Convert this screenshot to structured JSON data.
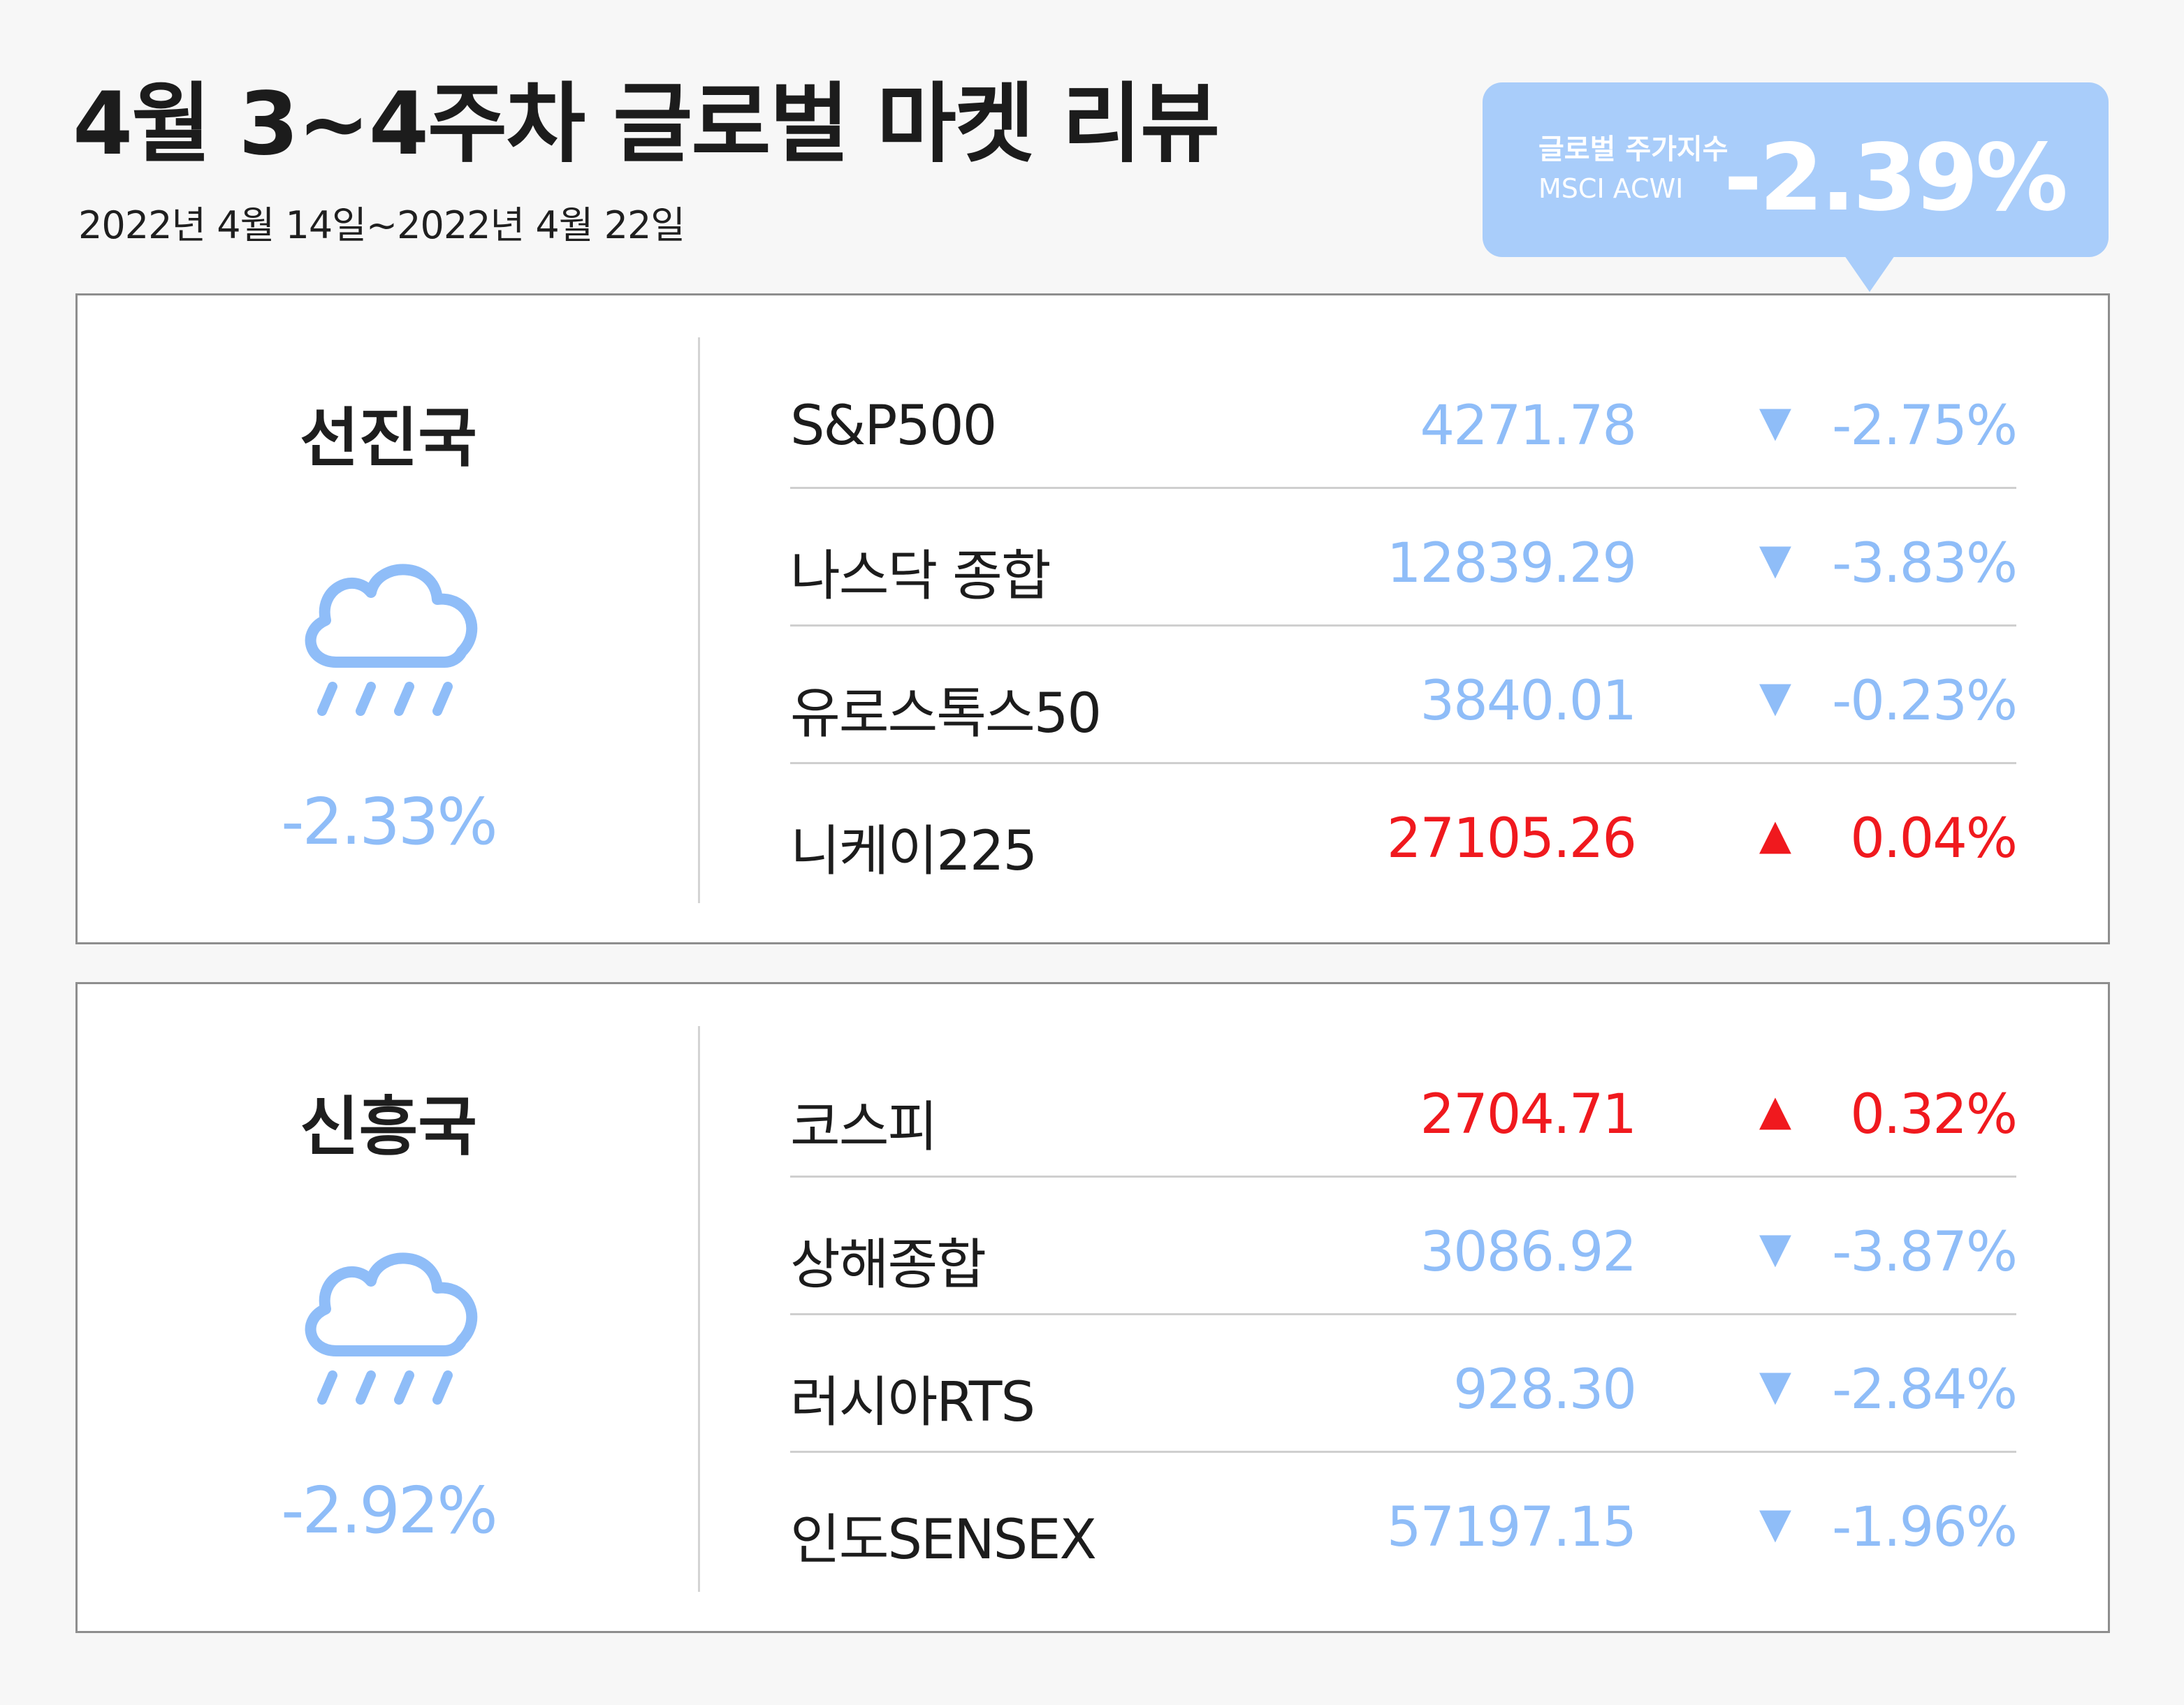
{
  "title": "4월 3~4주차 글로벌 마켓 리뷰",
  "date_range": "2022년 4월 14일~2022년 4월 22일",
  "global_index": {
    "label": "글로벌 주가지수",
    "sub": "MSCI ACWI",
    "value": "-2.39%"
  },
  "colors": {
    "down": "#8fbdf8",
    "up": "#f0191e",
    "badge": "#a9cdfa"
  },
  "sections": [
    {
      "name": "선진국",
      "icon": "rain-cloud-icon",
      "change": "-2.33%",
      "rows": [
        {
          "name": "S&P500",
          "value": "4271.78",
          "direction": "down",
          "arrow": "▼",
          "pct": "-2.75%"
        },
        {
          "name": "나스닥 종합",
          "value": "12839.29",
          "direction": "down",
          "arrow": "▼",
          "pct": "-3.83%"
        },
        {
          "name": "유로스톡스50",
          "value": "3840.01",
          "direction": "down",
          "arrow": "▼",
          "pct": "-0.23%"
        },
        {
          "name": "니케이225",
          "value": "27105.26",
          "direction": "up",
          "arrow": "▲",
          "pct": "0.04%"
        }
      ]
    },
    {
      "name": "신흥국",
      "icon": "rain-cloud-icon",
      "change": "-2.92%",
      "rows": [
        {
          "name": "코스피",
          "value": "2704.71",
          "direction": "up",
          "arrow": "▲",
          "pct": "0.32%"
        },
        {
          "name": "상해종합",
          "value": "3086.92",
          "direction": "down",
          "arrow": "▼",
          "pct": "-3.87%"
        },
        {
          "name": "러시아RTS",
          "value": "928.30",
          "direction": "down",
          "arrow": "▼",
          "pct": "-2.84%"
        },
        {
          "name": "인도SENSEX",
          "value": "57197.15",
          "direction": "down",
          "arrow": "▼",
          "pct": "-1.96%"
        }
      ]
    }
  ]
}
